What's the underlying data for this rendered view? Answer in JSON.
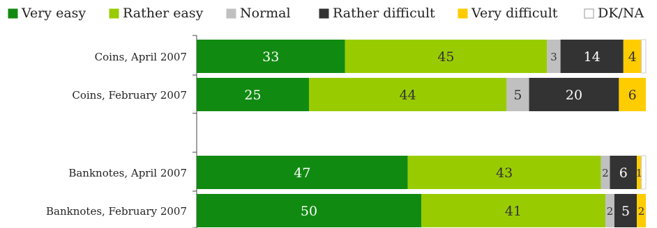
{
  "chart_data": {
    "type": "bar",
    "orientation": "horizontal",
    "stacked": true,
    "xlim": [
      0,
      100
    ],
    "grid": false,
    "legend_position": "top",
    "categories": [
      "Coins, April 2007",
      "Coins, February 2007",
      "",
      "Banknotes, April 2007",
      "Banknotes, February 2007"
    ],
    "series": [
      {
        "name": "Very easy",
        "color": "#118a11",
        "label_color": "#ffffff",
        "values": [
          33,
          25,
          null,
          47,
          50
        ]
      },
      {
        "name": "Rather easy",
        "color": "#99cc00",
        "label_color": "#333333",
        "values": [
          45,
          44,
          null,
          43,
          41
        ]
      },
      {
        "name": "Normal",
        "color": "#c0c0c0",
        "label_color": "#333333",
        "values": [
          3,
          5,
          null,
          2,
          2
        ]
      },
      {
        "name": "Rather difficult",
        "color": "#333333",
        "label_color": "#ffffff",
        "values": [
          14,
          20,
          null,
          6,
          5
        ]
      },
      {
        "name": "Very difficult",
        "color": "#ffcc00",
        "label_color": "#333333",
        "values": [
          4,
          6,
          null,
          1,
          2
        ]
      },
      {
        "name": "DK/NA",
        "color": "#ffffff",
        "label_color": "#333333",
        "values": [
          1,
          0,
          null,
          1,
          0
        ]
      }
    ]
  }
}
